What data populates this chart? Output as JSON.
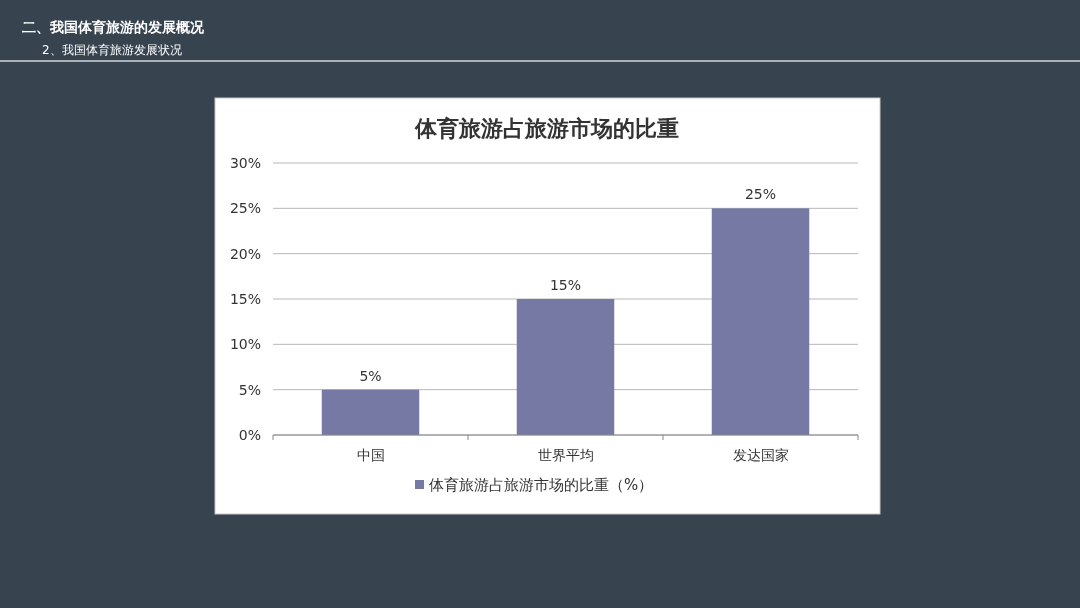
{
  "chart_data": {
    "type": "bar",
    "title": "体育旅游占旅游市场的比重",
    "annotations": [
      "二、我国体育旅游的发展概况",
      "2、我国体育旅游发展状况"
    ],
    "categories": [
      "中国",
      "世界平均",
      "发达国家"
    ],
    "series": [
      {
        "name": "体育旅游占旅游市场的比重（%）",
        "color": "#7579a3",
        "values": [
          5,
          15,
          25
        ],
        "value_labels": [
          "5%",
          "15%",
          "25%"
        ]
      }
    ],
    "ylim": [
      0,
      30
    ],
    "yticks": [
      {
        "value": 0,
        "label": "0%"
      },
      {
        "value": 5,
        "label": "5%"
      },
      {
        "value": 10,
        "label": "10%"
      },
      {
        "value": 15,
        "label": "15%"
      },
      {
        "value": 20,
        "label": "20%"
      },
      {
        "value": 25,
        "label": "25%"
      },
      {
        "value": 30,
        "label": "30%"
      }
    ],
    "grid": "y",
    "legend": "bottom"
  }
}
